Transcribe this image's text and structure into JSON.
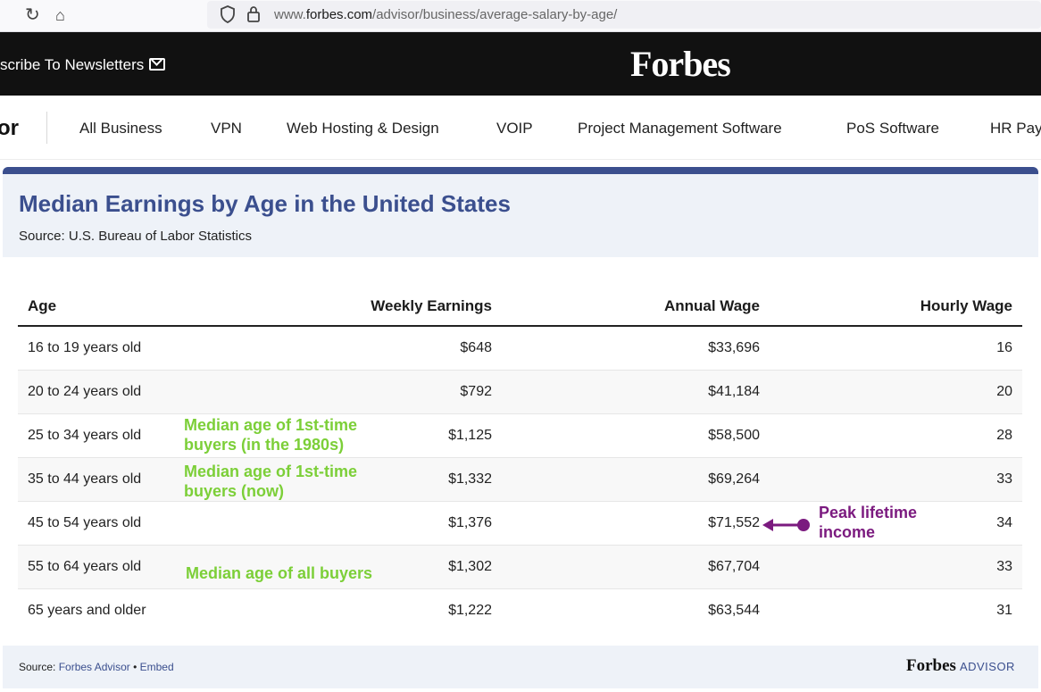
{
  "browser": {
    "url_prefix": "www.",
    "url_domain": "forbes.com",
    "url_path": "/advisor/business/average-salary-by-age/"
  },
  "header": {
    "newsletter_label": "scribe To Newsletters",
    "logo_text": "Forbes"
  },
  "subnav": {
    "brand_fragment": "or",
    "items": [
      {
        "label": "All Business"
      },
      {
        "label": "VPN"
      },
      {
        "label": "Web Hosting & Design"
      },
      {
        "label": "VOIP"
      },
      {
        "label": "Project Management Software"
      },
      {
        "label": "PoS Software"
      },
      {
        "label": "HR Pay"
      }
    ]
  },
  "table": {
    "title": "Median Earnings by Age in the United States",
    "source": "Source: U.S. Bureau of Labor Statistics",
    "columns": [
      "Age",
      "Weekly Earnings",
      "Annual Wage",
      "Hourly Wage"
    ],
    "rows": [
      {
        "age": "16 to 19 years old",
        "weekly": "$648",
        "annual": "$33,696",
        "hourly": "16"
      },
      {
        "age": "20 to 24 years old",
        "weekly": "$792",
        "annual": "$41,184",
        "hourly": "20"
      },
      {
        "age": "25 to 34 years old",
        "weekly": "$1,125",
        "annual": "$58,500",
        "hourly": "28"
      },
      {
        "age": "35 to 44 years old",
        "weekly": "$1,332",
        "annual": "$69,264",
        "hourly": "33"
      },
      {
        "age": "45 to 54 years old",
        "weekly": "$1,376",
        "annual": "$71,552",
        "hourly": "34"
      },
      {
        "age": "55 to 64 years old",
        "weekly": "$1,302",
        "annual": "$67,704",
        "hourly": "33"
      },
      {
        "age": "65 years and older",
        "weekly": "$1,222",
        "annual": "$63,544",
        "hourly": "31"
      }
    ]
  },
  "annotations": {
    "first_time_1980s": [
      "Median age of 1st-time",
      "buyers (in the 1980s)"
    ],
    "first_time_now": [
      "Median age of 1st-time",
      "buyers (now)"
    ],
    "all_buyers": "Median age of all buyers",
    "peak_income": [
      "Peak lifetime",
      "income"
    ],
    "green_color": "#7ccf38",
    "purple_color": "#7b1a7f"
  },
  "footer": {
    "source_label": "Source: ",
    "source_link": "Forbes Advisor",
    "separator": " • ",
    "embed_link": "Embed",
    "logo_word": "Forbes",
    "logo_sub": "ADVISOR"
  }
}
